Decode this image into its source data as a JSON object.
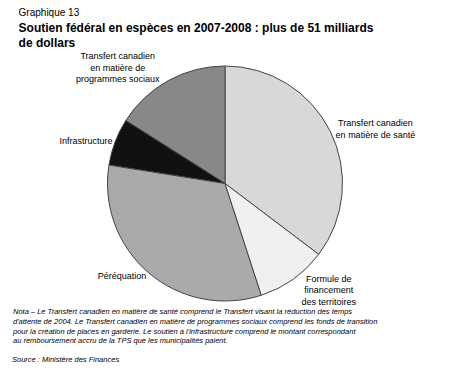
{
  "chart_data": {
    "type": "pie",
    "subtitle": "Graphique 13",
    "title": "Soutien fédéral en espèces en 2007-2008 : plus de 51 milliards\nde dollars",
    "categories": [
      "Transfert canadien\nen matière de santé",
      "Transfert canadien\nen matière de\nprogrammes sociaux",
      "Infrastructure",
      "Péréquation",
      "Formule de\nfinancement\ndes territoires"
    ],
    "values": [
      35.3,
      16.0,
      6.5,
      32.5,
      9.7
    ],
    "colors": [
      "#d8d8d8",
      "#888888",
      "#111111",
      "#aaaaaa",
      "#f0f0f0"
    ],
    "annotations": [
      "Nota – Le Transfert canadien en matière de santé comprend le Transfert visant la réduction des temps\nd'attente de 2004. Le Transfert canadien en matière de programmes sociaux comprend les fonds de transition\npour la création de places en garderie. Le soutien à l'infrastructure comprend le montant correspondant\nau remboursement accru de la TPS que les municipalités paient.",
      "Source : Ministère des Finances"
    ]
  }
}
